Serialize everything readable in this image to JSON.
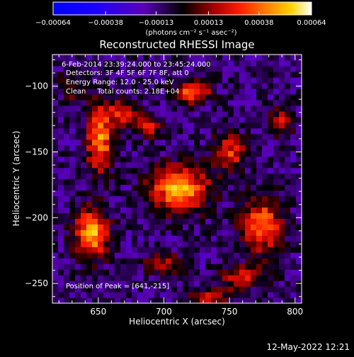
{
  "chart_data": {
    "type": "heatmap",
    "title": "Reconstructed RHESSI Image",
    "xlabel": "Heliocentric X (arcsec)",
    "ylabel": "Heliocentric Y (arcsec)",
    "xlim": [
      615,
      805
    ],
    "ylim": [
      -265,
      -76
    ],
    "x_ticks": [
      650,
      700,
      750,
      800
    ],
    "y_ticks": [
      -100,
      -150,
      -200,
      -250
    ],
    "colorbar": {
      "range": [
        -0.00064,
        0.00064
      ],
      "ticks": [
        "-0.00064",
        "-0.00038",
        "-0.00013",
        "0.00013",
        "0.00038",
        "0.00064"
      ],
      "unit_label": "(photons cm⁻² s⁻¹ asec⁻²)"
    },
    "annotations": {
      "time": "6-Feb-2014 23:39:24.000 to 23:45:24.000",
      "detectors": "Detectors: 3F 4F 5F 6F 7F 8F, att 0",
      "energy": "Energy Range: 12.0 - 25.0 keV",
      "clean": "Clean     Total counts: 2.18E+04",
      "peak": "Position of Peak = [641,-215]"
    },
    "sources": [
      {
        "x": 645,
        "y": -212,
        "amp": 0.00062,
        "sx": 9,
        "sy": 13
      },
      {
        "x": 651,
        "y": -140,
        "amp": 0.00056,
        "sx": 7,
        "sy": 18
      },
      {
        "x": 712,
        "y": -178,
        "amp": 0.0006,
        "sx": 16,
        "sy": 12
      },
      {
        "x": 722,
        "y": -104,
        "amp": 0.00052,
        "sx": 9,
        "sy": 6
      },
      {
        "x": 668,
        "y": -120,
        "amp": 0.00035,
        "sx": 8,
        "sy": 7
      },
      {
        "x": 688,
        "y": -130,
        "amp": 0.00033,
        "sx": 8,
        "sy": 6
      },
      {
        "x": 750,
        "y": -150,
        "amp": 0.0004,
        "sx": 9,
        "sy": 9
      },
      {
        "x": 775,
        "y": -205,
        "amp": 0.0005,
        "sx": 11,
        "sy": 15
      },
      {
        "x": 760,
        "y": -245,
        "amp": 0.00033,
        "sx": 12,
        "sy": 6
      },
      {
        "x": 700,
        "y": -235,
        "amp": 0.0003,
        "sx": 10,
        "sy": 6
      },
      {
        "x": 735,
        "y": -260,
        "amp": 0.0003,
        "sx": 12,
        "sy": 5
      },
      {
        "x": 790,
        "y": -125,
        "amp": 0.00028,
        "sx": 6,
        "sy": 9
      },
      {
        "x": 630,
        "y": -100,
        "amp": 0.0002,
        "sx": 8,
        "sy": 8
      }
    ],
    "background": -0.00012
  },
  "footer": {
    "date": "12-May-2022 12:21"
  }
}
